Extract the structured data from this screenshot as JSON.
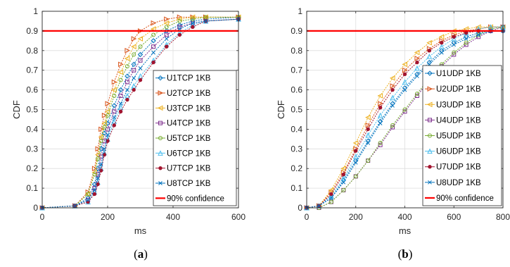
{
  "chart_data": [
    {
      "type": "line",
      "panel_caption": "(a)",
      "caption_letter": "a",
      "xlabel": "ms",
      "ylabel": "CDF",
      "xlim": [
        0,
        600
      ],
      "ylim": [
        0,
        1
      ],
      "xticks": [
        0,
        200,
        400,
        600
      ],
      "xtick_labels": [
        "0",
        "200",
        "400",
        "600"
      ],
      "yticks": [
        0,
        0.1,
        0.2,
        0.3,
        0.4,
        0.5,
        0.6,
        0.7,
        0.8,
        0.9,
        1
      ],
      "ytick_labels": [
        "0",
        "0.1",
        "0.2",
        "0.3",
        "0.4",
        "0.5",
        "0.6",
        "0.7",
        "0.8",
        "0.9",
        "1"
      ],
      "grid": true,
      "legend_position": "right",
      "reference_line": {
        "name": "90% confidence",
        "y": 0.9,
        "color": "#ff0000"
      },
      "series": [
        {
          "name": "U1TCP  1KB",
          "color": "#0072bd",
          "marker": "diamond",
          "x": [
            0,
            100,
            140,
            160,
            170,
            180,
            190,
            200,
            220,
            240,
            260,
            280,
            300,
            340,
            380,
            420,
            460,
            500,
            600
          ],
          "y": [
            0,
            0.01,
            0.05,
            0.12,
            0.2,
            0.3,
            0.38,
            0.43,
            0.52,
            0.6,
            0.67,
            0.73,
            0.78,
            0.85,
            0.9,
            0.93,
            0.95,
            0.96,
            0.97
          ]
        },
        {
          "name": "U2TCP  1KB",
          "color": "#d95319",
          "marker": "triangle-right",
          "x": [
            0,
            100,
            140,
            160,
            170,
            180,
            190,
            200,
            220,
            240,
            260,
            280,
            300,
            340,
            380,
            420,
            460,
            500,
            600
          ],
          "y": [
            0,
            0.01,
            0.08,
            0.2,
            0.3,
            0.4,
            0.47,
            0.53,
            0.64,
            0.73,
            0.8,
            0.86,
            0.9,
            0.94,
            0.96,
            0.97,
            0.97,
            0.97,
            0.97
          ]
        },
        {
          "name": "U3TCP  1KB",
          "color": "#edb120",
          "marker": "triangle-left",
          "x": [
            0,
            100,
            140,
            160,
            170,
            180,
            190,
            200,
            220,
            240,
            260,
            280,
            300,
            340,
            380,
            420,
            460,
            500,
            600
          ],
          "y": [
            0,
            0.01,
            0.07,
            0.18,
            0.27,
            0.36,
            0.43,
            0.49,
            0.6,
            0.69,
            0.76,
            0.82,
            0.86,
            0.91,
            0.94,
            0.96,
            0.97,
            0.97,
            0.97
          ]
        },
        {
          "name": "U4TCP  1KB",
          "color": "#7e2f8e",
          "marker": "square",
          "x": [
            0,
            100,
            140,
            160,
            170,
            180,
            190,
            200,
            220,
            240,
            260,
            280,
            300,
            340,
            380,
            420,
            460,
            500,
            600
          ],
          "y": [
            0,
            0.01,
            0.04,
            0.1,
            0.17,
            0.26,
            0.34,
            0.4,
            0.49,
            0.57,
            0.64,
            0.7,
            0.75,
            0.82,
            0.88,
            0.92,
            0.94,
            0.95,
            0.96
          ]
        },
        {
          "name": "U5TCP  1KB",
          "color": "#77ac30",
          "marker": "circle",
          "x": [
            0,
            100,
            140,
            160,
            170,
            180,
            190,
            200,
            220,
            240,
            260,
            280,
            300,
            340,
            380,
            420,
            460,
            500,
            600
          ],
          "y": [
            0,
            0.01,
            0.07,
            0.17,
            0.25,
            0.34,
            0.41,
            0.47,
            0.57,
            0.65,
            0.72,
            0.78,
            0.82,
            0.88,
            0.92,
            0.95,
            0.96,
            0.97,
            0.97
          ]
        },
        {
          "name": "U6TCP  1KB",
          "color": "#4dbeee",
          "marker": "triangle-up",
          "x": [
            0,
            100,
            140,
            160,
            170,
            180,
            190,
            200,
            220,
            240,
            260,
            280,
            300,
            340,
            380,
            420,
            460,
            500,
            600
          ],
          "y": [
            0,
            0.01,
            0.03,
            0.08,
            0.13,
            0.2,
            0.28,
            0.35,
            0.44,
            0.51,
            0.57,
            0.62,
            0.67,
            0.75,
            0.83,
            0.89,
            0.93,
            0.95,
            0.96
          ]
        },
        {
          "name": "U7TCP  1KB",
          "color": "#a2142f",
          "marker": "circle-filled",
          "x": [
            0,
            100,
            140,
            160,
            170,
            180,
            190,
            200,
            220,
            240,
            260,
            280,
            300,
            340,
            380,
            420,
            460,
            500,
            600
          ],
          "y": [
            0,
            0.01,
            0.03,
            0.07,
            0.12,
            0.19,
            0.27,
            0.34,
            0.42,
            0.49,
            0.55,
            0.6,
            0.65,
            0.74,
            0.82,
            0.88,
            0.92,
            0.95,
            0.96
          ]
        },
        {
          "name": "U8TCP  1KB",
          "color": "#0072bd",
          "marker": "x",
          "x": [
            0,
            100,
            140,
            160,
            170,
            180,
            190,
            200,
            220,
            240,
            260,
            280,
            300,
            340,
            380,
            420,
            460,
            500,
            600
          ],
          "y": [
            0,
            0.01,
            0.04,
            0.09,
            0.15,
            0.22,
            0.3,
            0.37,
            0.46,
            0.53,
            0.6,
            0.66,
            0.71,
            0.79,
            0.86,
            0.91,
            0.94,
            0.95,
            0.96
          ]
        }
      ]
    },
    {
      "type": "line",
      "panel_caption": "(b)",
      "caption_letter": "b",
      "xlabel": "ms",
      "ylabel": "CDF",
      "xlim": [
        0,
        800
      ],
      "ylim": [
        0,
        1
      ],
      "xticks": [
        0,
        200,
        400,
        600,
        800
      ],
      "xtick_labels": [
        "0",
        "200",
        "400",
        "600",
        "800"
      ],
      "yticks": [
        0,
        0.1,
        0.2,
        0.3,
        0.4,
        0.5,
        0.6,
        0.7,
        0.8,
        0.9,
        1
      ],
      "ytick_labels": [
        "0",
        "0.1",
        "0.2",
        "0.3",
        "0.4",
        "0.5",
        "0.6",
        "0.7",
        "0.8",
        "0.9",
        "1"
      ],
      "grid": true,
      "legend_position": "right",
      "reference_line": {
        "name": "90% confidence",
        "y": 0.9,
        "color": "#ff0000"
      },
      "series": [
        {
          "name": "U1UDP  1KB",
          "color": "#0072bd",
          "marker": "diamond",
          "x": [
            0,
            50,
            100,
            150,
            200,
            250,
            300,
            350,
            400,
            450,
            500,
            550,
            600,
            650,
            700,
            750,
            800
          ],
          "y": [
            0,
            0.01,
            0.05,
            0.14,
            0.24,
            0.34,
            0.44,
            0.53,
            0.61,
            0.68,
            0.74,
            0.8,
            0.84,
            0.87,
            0.89,
            0.9,
            0.9
          ]
        },
        {
          "name": "U2UDP  1KB",
          "color": "#d95319",
          "marker": "triangle-right",
          "x": [
            0,
            50,
            100,
            150,
            200,
            250,
            300,
            350,
            400,
            450,
            500,
            550,
            600,
            650,
            700,
            750,
            800
          ],
          "y": [
            0,
            0.01,
            0.08,
            0.18,
            0.3,
            0.42,
            0.53,
            0.62,
            0.7,
            0.76,
            0.81,
            0.85,
            0.88,
            0.9,
            0.91,
            0.92,
            0.92
          ]
        },
        {
          "name": "U3UDP  1KB",
          "color": "#edb120",
          "marker": "triangle-left",
          "x": [
            0,
            50,
            100,
            150,
            200,
            250,
            300,
            350,
            400,
            450,
            500,
            550,
            600,
            650,
            700,
            750,
            800
          ],
          "y": [
            0,
            0.01,
            0.09,
            0.2,
            0.33,
            0.46,
            0.57,
            0.66,
            0.73,
            0.79,
            0.84,
            0.87,
            0.9,
            0.91,
            0.92,
            0.92,
            0.92
          ]
        },
        {
          "name": "U4UDP  1KB",
          "color": "#7e2f8e",
          "marker": "square",
          "x": [
            0,
            50,
            100,
            150,
            200,
            250,
            300,
            350,
            400,
            450,
            500,
            550,
            600,
            650,
            700,
            750,
            800
          ],
          "y": [
            0,
            0,
            0.03,
            0.09,
            0.16,
            0.24,
            0.32,
            0.41,
            0.49,
            0.57,
            0.65,
            0.72,
            0.78,
            0.83,
            0.87,
            0.9,
            0.92
          ]
        },
        {
          "name": "U5UDP  1KB",
          "color": "#77ac30",
          "marker": "circle",
          "x": [
            0,
            50,
            100,
            150,
            200,
            250,
            300,
            350,
            400,
            450,
            500,
            550,
            600,
            650,
            700,
            750,
            800
          ],
          "y": [
            0,
            0,
            0.03,
            0.09,
            0.16,
            0.24,
            0.33,
            0.42,
            0.5,
            0.58,
            0.66,
            0.73,
            0.79,
            0.84,
            0.88,
            0.91,
            0.92
          ]
        },
        {
          "name": "U6UDP  1KB",
          "color": "#4dbeee",
          "marker": "triangle-up",
          "x": [
            0,
            50,
            100,
            150,
            200,
            250,
            300,
            350,
            400,
            450,
            500,
            550,
            600,
            650,
            700,
            750,
            800
          ],
          "y": [
            0,
            0.01,
            0.06,
            0.15,
            0.26,
            0.37,
            0.47,
            0.56,
            0.64,
            0.71,
            0.77,
            0.82,
            0.86,
            0.89,
            0.91,
            0.92,
            0.92
          ]
        },
        {
          "name": "U7UDP  1KB",
          "color": "#a2142f",
          "marker": "circle-filled",
          "x": [
            0,
            50,
            100,
            150,
            200,
            250,
            300,
            350,
            400,
            450,
            500,
            550,
            600,
            650,
            700,
            750,
            800
          ],
          "y": [
            0,
            0.01,
            0.07,
            0.17,
            0.29,
            0.4,
            0.51,
            0.6,
            0.68,
            0.74,
            0.8,
            0.84,
            0.87,
            0.89,
            0.9,
            0.9,
            0.9
          ]
        },
        {
          "name": "U8UDP  1KB",
          "color": "#0072bd",
          "marker": "x",
          "x": [
            0,
            50,
            100,
            150,
            200,
            250,
            300,
            350,
            400,
            450,
            500,
            550,
            600,
            650,
            700,
            750,
            800
          ],
          "y": [
            0,
            0.01,
            0.05,
            0.13,
            0.23,
            0.33,
            0.43,
            0.52,
            0.6,
            0.67,
            0.73,
            0.79,
            0.83,
            0.86,
            0.88,
            0.9,
            0.9
          ]
        }
      ]
    }
  ]
}
